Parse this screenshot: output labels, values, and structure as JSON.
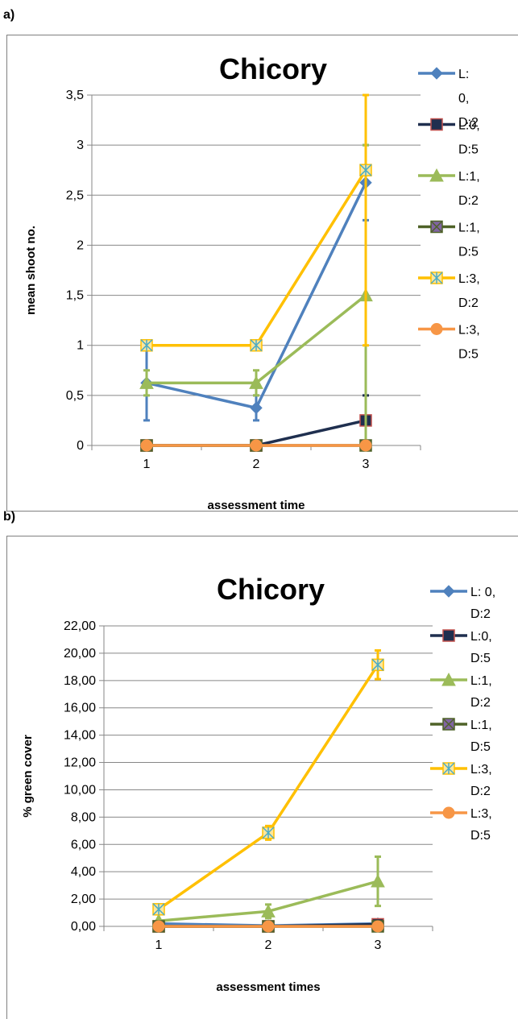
{
  "panels": {
    "a_label": "a)",
    "b_label": "b)"
  },
  "chart_data": [
    {
      "type": "line",
      "title": "Chicory",
      "xlabel": "assessment time",
      "ylabel": "mean shoot no.",
      "x": [
        1,
        2,
        3
      ],
      "x_tick_labels": [
        "1",
        "2",
        "3"
      ],
      "ylim": [
        0,
        3.5
      ],
      "y_tick_labels": [
        "0",
        "0,5",
        "1",
        "1,5",
        "2",
        "2,5",
        "3",
        "3,5"
      ],
      "grid": "horizontal",
      "legend_position": "right",
      "series": [
        {
          "name": "L: 0, D:2",
          "legend_lines": [
            "L:",
            "0,",
            "D:2"
          ],
          "values": [
            0.625,
            0.375,
            2.625
          ],
          "errors": [
            0.375,
            0.125,
            0.375
          ],
          "color": "#4F81BD",
          "marker": "diamond"
        },
        {
          "name": "L:0, D:5",
          "legend_lines": [
            "L:0,",
            "D:5"
          ],
          "values": [
            0,
            0,
            0.25
          ],
          "errors": [
            0,
            0,
            0.25
          ],
          "color": "#1F2F4F",
          "marker": "square"
        },
        {
          "name": "L:1, D:2",
          "legend_lines": [
            "L:1,",
            "D:2"
          ],
          "values": [
            0.625,
            0.625,
            1.5
          ],
          "errors": [
            0.125,
            0.125,
            1.5
          ],
          "color": "#9BBB59",
          "marker": "triangle"
        },
        {
          "name": "L:1, D:5",
          "legend_lines": [
            "L:1,",
            "D:5"
          ],
          "values": [
            0,
            0,
            0
          ],
          "errors": [
            0,
            0,
            0
          ],
          "color": "#4F6228",
          "marker": "x-square"
        },
        {
          "name": "L:3, D:2",
          "legend_lines": [
            "L:3,",
            "D:2"
          ],
          "values": [
            1,
            1,
            2.75
          ],
          "errors": [
            0,
            0,
            1.75
          ],
          "color": "#FFC000",
          "marker": "star-square"
        },
        {
          "name": "L:3, D:5",
          "legend_lines": [
            "L:3,",
            "D:5"
          ],
          "values": [
            0,
            0,
            0
          ],
          "errors": [
            0,
            0,
            0
          ],
          "color": "#F79646",
          "marker": "circle"
        }
      ]
    },
    {
      "type": "line",
      "title": "Chicory",
      "xlabel": "assessment times",
      "ylabel": "% green cover",
      "x": [
        1,
        2,
        3
      ],
      "x_tick_labels": [
        "1",
        "2",
        "3"
      ],
      "ylim": [
        0,
        22
      ],
      "y_tick_labels": [
        "0,00",
        "2,00",
        "4,00",
        "6,00",
        "8,00",
        "10,00",
        "12,00",
        "14,00",
        "16,00",
        "18,00",
        "20,00",
        "22,00"
      ],
      "grid": "horizontal",
      "legend_position": "right",
      "series": [
        {
          "name": "L: 0, D:2",
          "legend_lines": [
            "L: 0,",
            "D:2"
          ],
          "values": [
            0.2,
            0.05,
            0.2
          ],
          "errors": [
            0,
            0,
            0
          ],
          "color": "#4F81BD",
          "marker": "diamond"
        },
        {
          "name": "L:0, D:5",
          "legend_lines": [
            "L:0,",
            "D:5"
          ],
          "values": [
            0,
            0,
            0.15
          ],
          "errors": [
            0,
            0,
            0
          ],
          "color": "#1F2F4F",
          "marker": "square"
        },
        {
          "name": "L:1, D:2",
          "legend_lines": [
            "L:1,",
            "D:2"
          ],
          "values": [
            0.4,
            1.1,
            3.3
          ],
          "errors": [
            0,
            0.5,
            1.8
          ],
          "color": "#9BBB59",
          "marker": "triangle"
        },
        {
          "name": "L:1, D:5",
          "legend_lines": [
            "L:1,",
            "D:5"
          ],
          "values": [
            0,
            0,
            0
          ],
          "errors": [
            0,
            0,
            0
          ],
          "color": "#4F6228",
          "marker": "x-square"
        },
        {
          "name": "L:3, D:2",
          "legend_lines": [
            "L:3,",
            "D:2"
          ],
          "values": [
            1.25,
            6.85,
            19.15
          ],
          "errors": [
            0,
            0.5,
            1.05
          ],
          "color": "#FFC000",
          "marker": "star-square"
        },
        {
          "name": "L:3, D:5",
          "legend_lines": [
            "L:3,",
            "D:5"
          ],
          "values": [
            0,
            0,
            0
          ],
          "errors": [
            0,
            0,
            0
          ],
          "color": "#F79646",
          "marker": "circle"
        }
      ]
    }
  ]
}
